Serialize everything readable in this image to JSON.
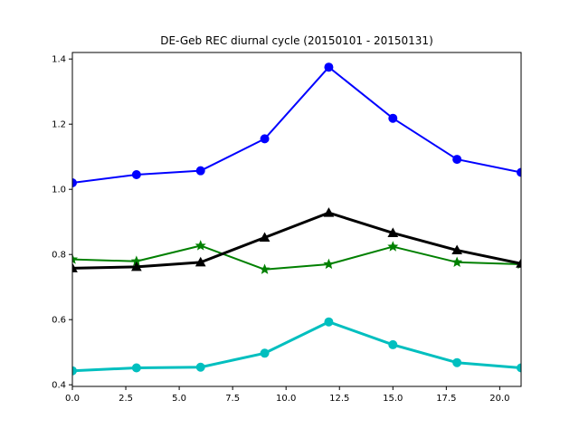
{
  "chart_data": {
    "type": "line",
    "title": "DE-Geb REC diurnal cycle (20150101 - 20150131)",
    "xlabel": "",
    "ylabel": "",
    "xlim": [
      0,
      21
    ],
    "ylim": [
      0.395,
      1.42
    ],
    "x": [
      0,
      3,
      6,
      9,
      12,
      15,
      18,
      21
    ],
    "xticks": [
      0,
      2.5,
      5,
      7.5,
      10,
      12.5,
      15,
      17.5,
      20
    ],
    "xtick_labels": [
      "0.0",
      "2.5",
      "5.0",
      "7.5",
      "10.0",
      "12.5",
      "15.0",
      "17.5",
      "20.0"
    ],
    "yticks": [
      0.4,
      0.6,
      0.8,
      1.0,
      1.2,
      1.4
    ],
    "ytick_labels": [
      "0.4",
      "0.6",
      "0.8",
      "1.0",
      "1.2",
      "1.4"
    ],
    "grid": false,
    "legend": false,
    "series": [
      {
        "values": [
          1.02,
          1.045,
          1.057,
          1.155,
          1.375,
          1.218,
          1.092,
          1.052
        ],
        "color": "#0000ff",
        "marker": "circle",
        "width": 2
      },
      {
        "values": [
          0.785,
          0.779,
          0.827,
          0.754,
          0.77,
          0.824,
          0.776,
          0.77
        ],
        "color": "#008000",
        "marker": "star",
        "width": 2
      },
      {
        "values": [
          0.758,
          0.762,
          0.776,
          0.852,
          0.928,
          0.866,
          0.813,
          0.772
        ],
        "color": "#000000",
        "marker": "triangle",
        "width": 3
      },
      {
        "values": [
          0.443,
          0.452,
          0.454,
          0.497,
          0.593,
          0.523,
          0.468,
          0.452
        ],
        "color": "#00bfbf",
        "marker": "circle",
        "width": 3
      }
    ]
  }
}
